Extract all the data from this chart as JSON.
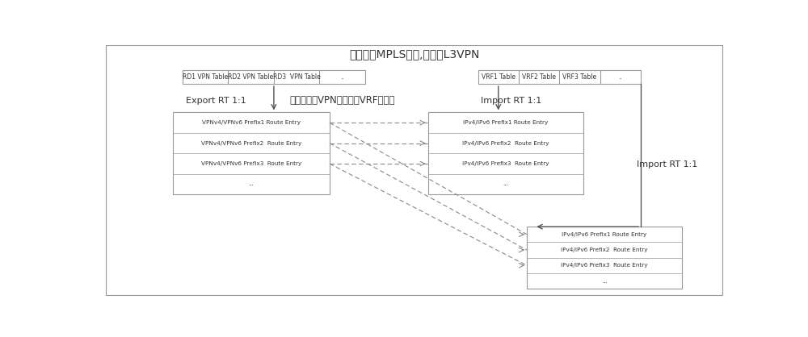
{
  "title": "双平面之MPLS平面,控制面L3VPN",
  "subtitle_mid": "远端学习的VPN路由导入VRF路由表",
  "export_rt": "Export RT 1:1",
  "import_rt1": "Import RT 1:1",
  "import_rt2": "Import RT 1:1",
  "left_table_cells": [
    "RD1 VPN Table",
    "RD2 VPN Table",
    "RD3  VPN Table",
    ".."
  ],
  "right_table_cells": [
    "VRF1 Table",
    "VRF2 Table",
    "VRF3 Table",
    ".."
  ],
  "left_box_rows": [
    "VPNv4/VPNv6 Prefix1 Route Entry",
    "VPNv4/VPNv6 Prefix2  Route Entry",
    "VPNv4/VPNv6 Prefix3  Route Entry",
    "..."
  ],
  "mid_box_rows": [
    "IPv4/IPv6 Prefix1 Route Entry",
    "IPv4/IPv6 Prefix2  Route Entry",
    "IPv4/IPv6 Prefix3  Route Entry",
    "..."
  ],
  "bot_box_rows": [
    "IPv4/IPv6 Prefix1 Route Entry",
    "IPv4/IPv6 Prefix2  Route Entry",
    "IPv4/IPv6 Prefix3  Route Entry",
    "..."
  ],
  "bg_color": "#ffffff",
  "box_edge_color": "#999999",
  "text_color": "#333333",
  "arrow_color": "#555555",
  "dashed_color": "#888888"
}
